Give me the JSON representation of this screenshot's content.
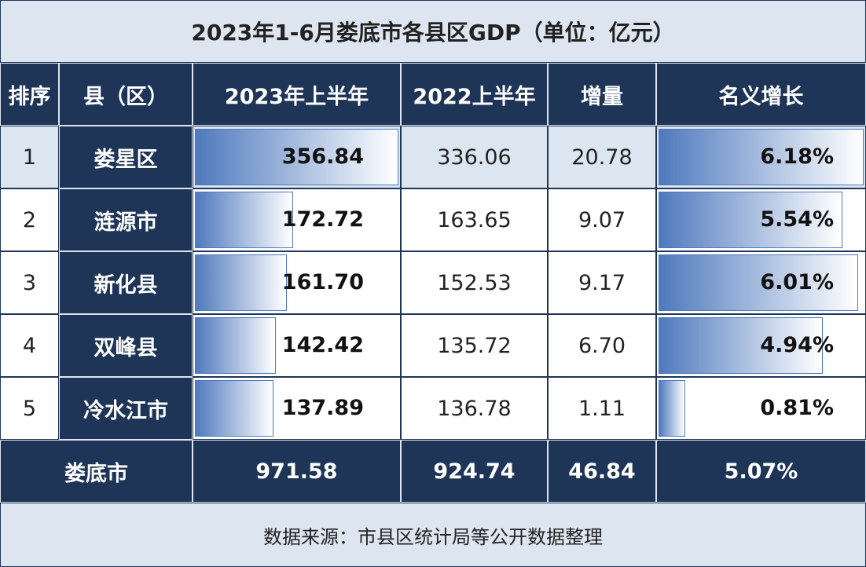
{
  "title": "2023年1-6月娄底市各县区GDP（单位：亿元）",
  "table": {
    "header": [
      "排序",
      "县（区）",
      "2023年上半年",
      "2022上半年",
      "增量",
      "名义增长"
    ],
    "rows": [
      [
        "1",
        "娄星区",
        "356.84",
        "336.06",
        "20.78",
        "6.18%"
      ],
      [
        "2",
        "涟源市",
        "172.72",
        "163.65",
        "9.07",
        "5.54%"
      ],
      [
        "3",
        "新化县",
        "161.70",
        "152.53",
        "9.17",
        "6.01%"
      ],
      [
        "4",
        "双峰县",
        "142.42",
        "135.72",
        "6.70",
        "4.94%"
      ],
      [
        "5",
        "冷水江市",
        "137.89",
        "136.78",
        "1.11",
        "0.81%"
      ]
    ],
    "total": [
      "娄底市",
      "971.58",
      "924.74",
      "46.84",
      "5.07%"
    ]
  },
  "source": "数据来源：市县区统计局等公开数据整理"
}
